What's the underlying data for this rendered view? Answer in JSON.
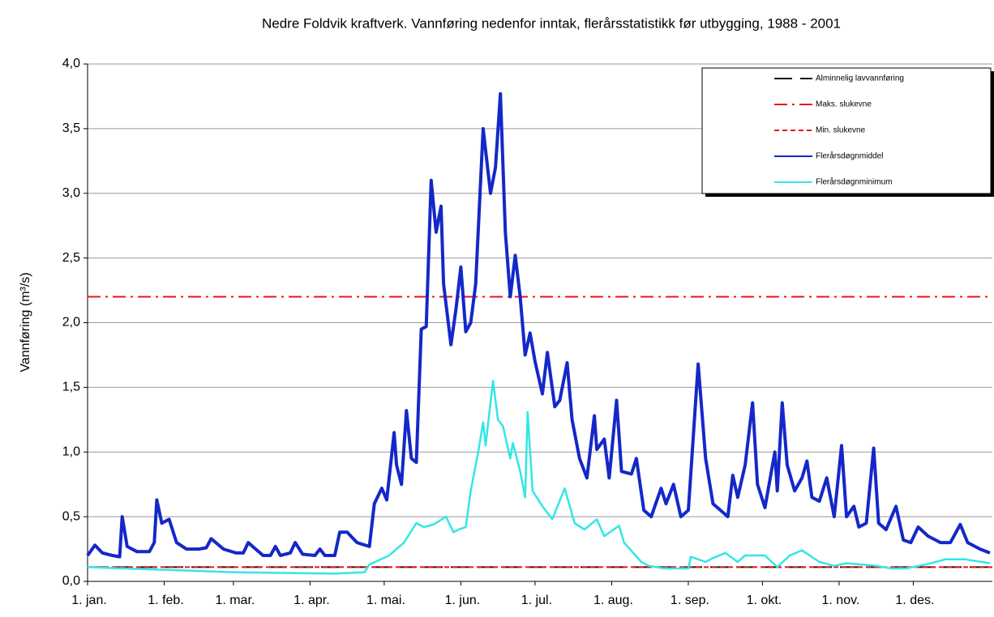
{
  "chart_data": {
    "type": "line",
    "title": "Nedre Foldvik kraftverk. Vannføring nedenfor inntak, flerårsstatistikk før utbygging, 1988  - 2001",
    "y_label": "Vannføring (m³/s)",
    "xlim": [
      0,
      366
    ],
    "ylim": [
      0,
      4
    ],
    "grid": true,
    "legend": "top-right",
    "xticks": [
      {
        "value": 0,
        "label": "1. jan."
      },
      {
        "value": 31,
        "label": "1. feb."
      },
      {
        "value": 59,
        "label": "1. mar."
      },
      {
        "value": 90,
        "label": "1. apr."
      },
      {
        "value": 120,
        "label": "1. mai."
      },
      {
        "value": 151,
        "label": "1. jun."
      },
      {
        "value": 181,
        "label": "1. jul."
      },
      {
        "value": 212,
        "label": "1. aug."
      },
      {
        "value": 243,
        "label": "1. sep."
      },
      {
        "value": 273,
        "label": "1. okt."
      },
      {
        "value": 304,
        "label": "1. nov."
      },
      {
        "value": 334,
        "label": "1. des."
      }
    ],
    "yticks": [
      {
        "value": 0,
        "label": "0,0"
      },
      {
        "value": 0.5,
        "label": "0,5"
      },
      {
        "value": 1,
        "label": "1,0"
      },
      {
        "value": 1.5,
        "label": "1,5"
      },
      {
        "value": 2,
        "label": "2,0"
      },
      {
        "value": 2.5,
        "label": "2,5"
      },
      {
        "value": 3,
        "label": "3,0"
      },
      {
        "value": 3.5,
        "label": "3,5"
      },
      {
        "value": 4,
        "label": "4,0"
      }
    ],
    "series": [
      {
        "name": "Alminnelig lavvannføring",
        "color": "#1a1a00",
        "linestyle": "dashed",
        "width": 2,
        "x": [
          0,
          366
        ],
        "values": [
          0.11,
          0.11
        ]
      },
      {
        "name": "Maks. slukevne",
        "color": "#e8141e",
        "linestyle": "dashdot",
        "width": 2,
        "x": [
          0,
          366
        ],
        "values": [
          2.2,
          2.2
        ]
      },
      {
        "name": "Min. slukevne",
        "color": "#e8141e",
        "linestyle": "dotted",
        "width": 2,
        "x": [
          0,
          366
        ],
        "values": [
          0.11,
          0.11
        ]
      },
      {
        "name": "Flerårsdøgnmiddel",
        "color": "#1428c8",
        "linestyle": "solid",
        "width": 4,
        "x": [
          0,
          3,
          6,
          10,
          13,
          14,
          16,
          20,
          25,
          27,
          28,
          30,
          33,
          36,
          40,
          45,
          48,
          50,
          55,
          60,
          63,
          65,
          68,
          71,
          74,
          76,
          78,
          82,
          84,
          87,
          92,
          94,
          96,
          100,
          102,
          105,
          109,
          114,
          116,
          119,
          121,
          124,
          125,
          127,
          129,
          131,
          133,
          135,
          137,
          139,
          141,
          143,
          144,
          147,
          149,
          151,
          153,
          155,
          157,
          160,
          163,
          165,
          167,
          169,
          171,
          173,
          175,
          177,
          179,
          181,
          184,
          186,
          189,
          191,
          194,
          196,
          199,
          202,
          205,
          206,
          209,
          211,
          214,
          216,
          220,
          222,
          225,
          228,
          232,
          234,
          237,
          240,
          243,
          247,
          250,
          253,
          256,
          259,
          261,
          263,
          266,
          269,
          271,
          274,
          278,
          279,
          281,
          283,
          286,
          289,
          291,
          293,
          296,
          299,
          302,
          305,
          307,
          310,
          312,
          315,
          318,
          320,
          323,
          327,
          330,
          333,
          336,
          340,
          345,
          349,
          353,
          356,
          361,
          365
        ],
        "values": [
          0.2,
          0.28,
          0.22,
          0.2,
          0.19,
          0.5,
          0.27,
          0.23,
          0.23,
          0.3,
          0.63,
          0.45,
          0.48,
          0.3,
          0.25,
          0.25,
          0.26,
          0.33,
          0.25,
          0.22,
          0.22,
          0.3,
          0.25,
          0.2,
          0.2,
          0.27,
          0.2,
          0.22,
          0.3,
          0.21,
          0.2,
          0.25,
          0.2,
          0.2,
          0.38,
          0.38,
          0.3,
          0.27,
          0.6,
          0.72,
          0.63,
          1.15,
          0.9,
          0.75,
          1.32,
          0.95,
          0.92,
          1.95,
          1.97,
          3.1,
          2.7,
          2.9,
          2.3,
          1.83,
          2.1,
          2.43,
          1.93,
          2.0,
          2.3,
          3.5,
          3.0,
          3.2,
          3.77,
          2.7,
          2.2,
          2.52,
          2.2,
          1.75,
          1.92,
          1.7,
          1.45,
          1.77,
          1.35,
          1.4,
          1.69,
          1.25,
          0.95,
          0.8,
          1.28,
          1.02,
          1.1,
          0.8,
          1.4,
          0.85,
          0.83,
          0.95,
          0.55,
          0.5,
          0.72,
          0.6,
          0.75,
          0.5,
          0.55,
          1.68,
          0.95,
          0.6,
          0.55,
          0.5,
          0.82,
          0.65,
          0.9,
          1.38,
          0.75,
          0.57,
          1.0,
          0.7,
          1.38,
          0.9,
          0.7,
          0.8,
          0.93,
          0.65,
          0.62,
          0.8,
          0.5,
          1.05,
          0.5,
          0.58,
          0.42,
          0.45,
          1.03,
          0.45,
          0.4,
          0.58,
          0.32,
          0.3,
          0.42,
          0.35,
          0.3,
          0.3,
          0.44,
          0.3,
          0.25,
          0.22
        ]
      },
      {
        "name": "Flerårsdøgnminimum",
        "color": "#33e6e6",
        "linestyle": "solid",
        "width": 2.5,
        "x": [
          0,
          30,
          60,
          100,
          112,
          114,
          122,
          128,
          133,
          136,
          140,
          145,
          148,
          150,
          153,
          155,
          158,
          160,
          161,
          164,
          166,
          168,
          171,
          172,
          175,
          177,
          178,
          180,
          184,
          188,
          193,
          197,
          201,
          206,
          209,
          215,
          217,
          224,
          227,
          233,
          243,
          244,
          250,
          253,
          258,
          263,
          266,
          274,
          279,
          284,
          289,
          296,
          302,
          307,
          319,
          325,
          331,
          339,
          347,
          355,
          365
        ],
        "values": [
          0.11,
          0.09,
          0.07,
          0.06,
          0.07,
          0.13,
          0.2,
          0.3,
          0.45,
          0.42,
          0.44,
          0.5,
          0.38,
          0.4,
          0.42,
          0.7,
          1.0,
          1.23,
          1.05,
          1.55,
          1.25,
          1.2,
          0.95,
          1.07,
          0.85,
          0.65,
          1.31,
          0.7,
          0.58,
          0.48,
          0.72,
          0.45,
          0.4,
          0.48,
          0.35,
          0.43,
          0.3,
          0.15,
          0.12,
          0.1,
          0.1,
          0.19,
          0.15,
          0.18,
          0.22,
          0.15,
          0.2,
          0.2,
          0.11,
          0.2,
          0.24,
          0.15,
          0.12,
          0.14,
          0.12,
          0.1,
          0.1,
          0.13,
          0.17,
          0.17,
          0.14
        ]
      }
    ]
  }
}
